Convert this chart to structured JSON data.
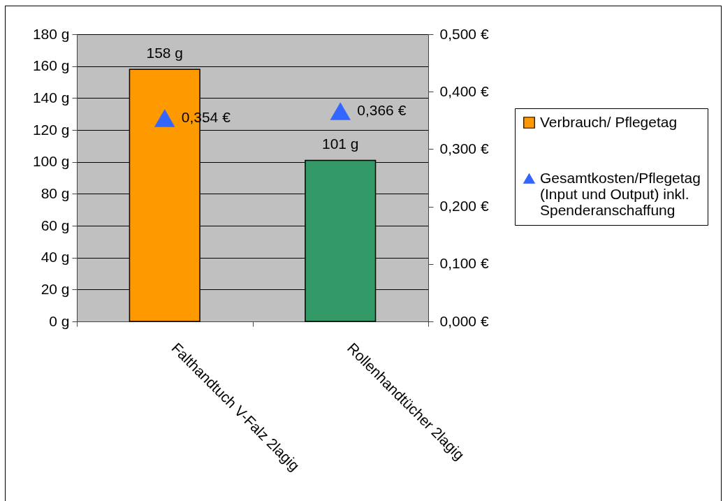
{
  "chart_data": {
    "type": "bar",
    "categories": [
      "Falthandtuch V-Falz 2lagig",
      "Rollenhandtücher 2lagig"
    ],
    "series": [
      {
        "name": "Verbrauch/ Pflegetag",
        "color": "#ff9900",
        "colors": [
          "#ff9900",
          "#339966"
        ],
        "values": [
          158,
          101
        ],
        "value_labels": [
          "158 g",
          "101 g"
        ]
      },
      {
        "name": "Gesamtkosten/Pflegetag (Input und Output) inkl. Spenderanschaffung",
        "type": "scatter",
        "axis": "y2",
        "marker": "triangle",
        "color": "#3366ff",
        "values": [
          0.354,
          0.366
        ],
        "value_labels": [
          "0,354 €",
          "0,366 €"
        ]
      }
    ],
    "ylim": [
      0,
      180
    ],
    "yticks": [
      {
        "value": 0,
        "label": "0 g"
      },
      {
        "value": 20,
        "label": "20 g"
      },
      {
        "value": 40,
        "label": "40 g"
      },
      {
        "value": 60,
        "label": "60 g"
      },
      {
        "value": 80,
        "label": "80 g"
      },
      {
        "value": 100,
        "label": "100 g"
      },
      {
        "value": 120,
        "label": "120 g"
      },
      {
        "value": 140,
        "label": "140 g"
      },
      {
        "value": 160,
        "label": "160 g"
      },
      {
        "value": 180,
        "label": "180 g"
      }
    ],
    "y2lim": [
      0,
      0.5
    ],
    "y2ticks": [
      {
        "value": 0,
        "label": "0,000 €"
      },
      {
        "value": 0.1,
        "label": "0,100 €"
      },
      {
        "value": 0.2,
        "label": "0,200 €"
      },
      {
        "value": 0.3,
        "label": "0,300 €"
      },
      {
        "value": 0.4,
        "label": "0,400 €"
      },
      {
        "value": 0.5,
        "label": "0,500 €"
      }
    ],
    "grid": "y",
    "legend": "right"
  }
}
